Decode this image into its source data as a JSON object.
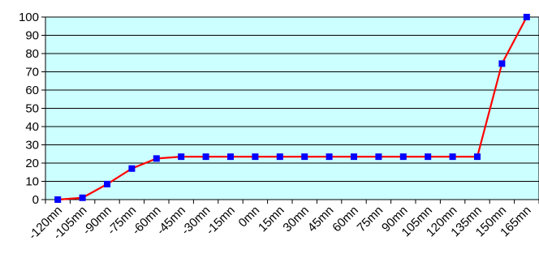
{
  "chart_data": {
    "type": "line",
    "title": "",
    "xlabel": "",
    "ylabel": "",
    "ylim": [
      0,
      100
    ],
    "y_ticks": [
      0,
      10,
      20,
      30,
      40,
      50,
      60,
      70,
      80,
      90,
      100
    ],
    "grid": "horizontal",
    "plot_background": "#ccffff",
    "categories": [
      "-120mn",
      "-105mn",
      "-90mn",
      "-75mn",
      "-60mn",
      "-45mn",
      "-30mn",
      "-15mn",
      "0mn",
      "15mn",
      "30mn",
      "45mn",
      "60mn",
      "75mn",
      "90mn",
      "105mn",
      "120mn",
      "135mn",
      "150mn",
      "165mn"
    ],
    "series": [
      {
        "line_color": "#ff0000",
        "marker_color": "#0000ff",
        "marker": "square",
        "values": [
          0,
          1,
          8.5,
          17,
          22.5,
          23.5,
          23.5,
          23.5,
          23.5,
          23.5,
          23.5,
          23.5,
          23.5,
          23.5,
          23.5,
          23.5,
          23.5,
          23.5,
          74.5,
          100
        ]
      }
    ]
  }
}
